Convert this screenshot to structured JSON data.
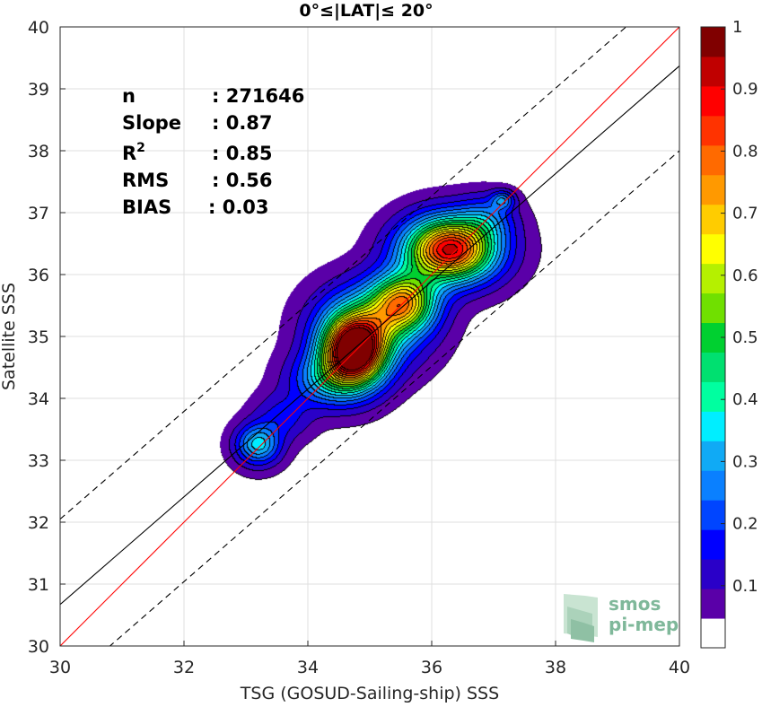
{
  "chart_data": {
    "type": "contour-density-scatter",
    "title": "0°≤|LAT|≤ 20°",
    "xlabel": "TSG (GOSUD-Sailing-ship) SSS",
    "ylabel": "Satellite SSS",
    "xlim": [
      30,
      40
    ],
    "ylim": [
      30,
      40
    ],
    "xticks": [
      30,
      32,
      34,
      36,
      38,
      40
    ],
    "yticks": [
      30,
      31,
      32,
      33,
      34,
      35,
      36,
      37,
      38,
      39,
      40
    ],
    "grid": true,
    "stats": [
      {
        "label": "n",
        "value": ": 271646"
      },
      {
        "label": "Slope",
        "value": ": 0.87"
      },
      {
        "label": "R²",
        "value": ": 0.85"
      },
      {
        "label": "RMS",
        "value": ": 0.56"
      },
      {
        "label": "BIAS",
        "value": ": 0.03"
      }
    ],
    "lines": [
      {
        "kind": "one-to-one",
        "color": "#ff0000",
        "intercept_at_30": 30,
        "slope": 1.0
      },
      {
        "kind": "fit",
        "color": "#000000",
        "intercept_at_30": 30.67,
        "slope": 0.87
      },
      {
        "kind": "upper-bound",
        "color": "#000000",
        "dash": true,
        "intercept_at_30": 32.05,
        "slope": 0.87
      },
      {
        "kind": "lower-bound",
        "color": "#000000",
        "dash": true,
        "intercept_at_30": 29.3,
        "slope": 0.87
      }
    ],
    "density_blobs": [
      {
        "x": 36.3,
        "y": 36.4,
        "sx": 0.5,
        "sy": 0.35,
        "amp": 0.92
      },
      {
        "x": 34.75,
        "y": 34.75,
        "sx": 0.34,
        "sy": 0.38,
        "amp": 1.0
      },
      {
        "x": 35.55,
        "y": 35.55,
        "sx": 0.36,
        "sy": 0.32,
        "amp": 0.62
      },
      {
        "x": 35.0,
        "y": 35.15,
        "sx": 0.55,
        "sy": 0.45,
        "amp": 0.35
      },
      {
        "x": 34.3,
        "y": 34.3,
        "sx": 0.4,
        "sy": 0.3,
        "amp": 0.25
      },
      {
        "x": 33.2,
        "y": 33.25,
        "sx": 0.24,
        "sy": 0.22,
        "amp": 0.32
      },
      {
        "x": 33.6,
        "y": 33.7,
        "sx": 0.3,
        "sy": 0.25,
        "amp": 0.12
      },
      {
        "x": 36.9,
        "y": 36.9,
        "sx": 0.3,
        "sy": 0.25,
        "amp": 0.15
      },
      {
        "x": 37.15,
        "y": 37.2,
        "sx": 0.13,
        "sy": 0.1,
        "amp": 0.2
      }
    ],
    "colorbar": {
      "min": 0,
      "max": 1,
      "ticks": [
        "0.1",
        "0.2",
        "0.3",
        "0.4",
        "0.5",
        "0.6",
        "0.7",
        "0.8",
        "0.9",
        "1"
      ],
      "tick_values": [
        0.1,
        0.2,
        0.3,
        0.4,
        0.5,
        0.6,
        0.7,
        0.8,
        0.9,
        1.0
      ],
      "colors": [
        "#ffffff",
        "#5a00a8",
        "#2a00c8",
        "#0000ff",
        "#0045ff",
        "#0a80ff",
        "#10aaf5",
        "#00eeff",
        "#00ffa0",
        "#00e070",
        "#00d030",
        "#70e000",
        "#b5f000",
        "#ffff00",
        "#ffcc00",
        "#ff9900",
        "#ff6a00",
        "#ff3300",
        "#ff0000",
        "#c00000",
        "#800000"
      ]
    },
    "logo": {
      "line1": "smos",
      "line2": "pi-mep"
    }
  }
}
